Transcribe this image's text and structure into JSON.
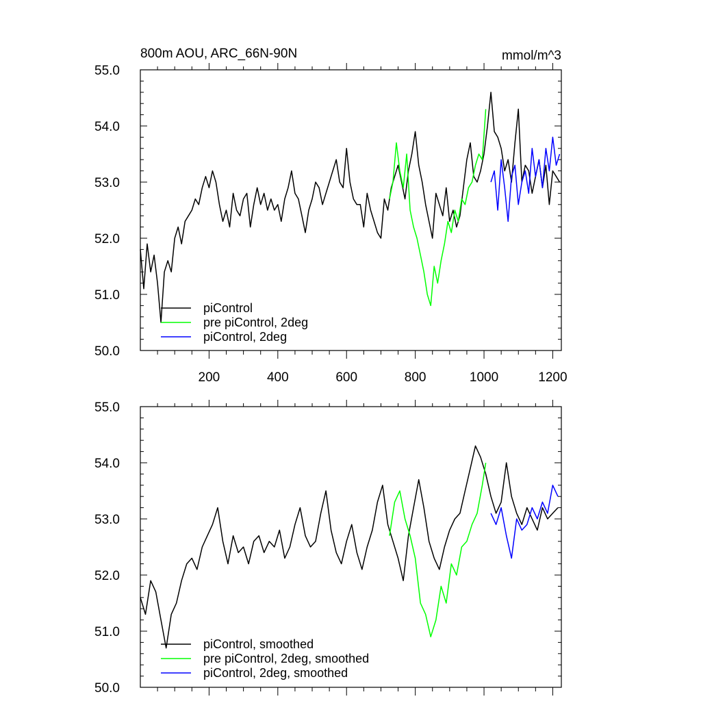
{
  "chart_data": [
    {
      "type": "line",
      "id": "top",
      "title_left": "800m AOU, ARC_66N-90N",
      "title_right": "mmol/m^3",
      "xlim": [
        0,
        1225
      ],
      "ylim": [
        50.0,
        55.0
      ],
      "x_ticks": [
        200,
        400,
        600,
        800,
        1000,
        1200
      ],
      "x_tick_labels": [
        "200",
        "400",
        "600",
        "800",
        "1000",
        "1200"
      ],
      "y_ticks": [
        50.0,
        51.0,
        52.0,
        53.0,
        54.0,
        55.0
      ],
      "y_tick_labels": [
        "50.0",
        "51.0",
        "52.0",
        "53.0",
        "54.0",
        "55.0"
      ],
      "legend": [
        "piControl",
        "pre piControl, 2deg",
        "piControl, 2deg"
      ],
      "series": [
        {
          "name": "piControl",
          "color": "#000000",
          "x": [
            0,
            10,
            20,
            30,
            40,
            50,
            60,
            70,
            80,
            90,
            100,
            110,
            120,
            130,
            140,
            150,
            160,
            170,
            180,
            190,
            200,
            210,
            220,
            230,
            240,
            250,
            260,
            270,
            280,
            290,
            300,
            310,
            320,
            330,
            340,
            350,
            360,
            370,
            380,
            390,
            400,
            410,
            420,
            430,
            440,
            450,
            460,
            470,
            480,
            490,
            500,
            510,
            520,
            530,
            540,
            550,
            560,
            570,
            580,
            590,
            600,
            610,
            620,
            630,
            640,
            650,
            660,
            670,
            680,
            690,
            700,
            710,
            720,
            730,
            740,
            750,
            760,
            770,
            780,
            790,
            800,
            810,
            820,
            830,
            840,
            850,
            860,
            870,
            880,
            890,
            900,
            910,
            920,
            930,
            940,
            950,
            960,
            970,
            980,
            990,
            1000,
            1010,
            1020,
            1030,
            1040,
            1050,
            1060,
            1070,
            1080,
            1090,
            1100,
            1110,
            1120,
            1130,
            1140,
            1150,
            1160,
            1170,
            1180,
            1190,
            1200,
            1210,
            1220
          ],
          "values": [
            51.8,
            51.1,
            51.9,
            51.4,
            51.7,
            51.2,
            50.5,
            51.4,
            51.6,
            51.4,
            52.0,
            52.2,
            51.9,
            52.3,
            52.4,
            52.5,
            52.7,
            52.6,
            52.9,
            53.1,
            52.9,
            53.2,
            53.0,
            52.6,
            52.3,
            52.5,
            52.2,
            52.8,
            52.5,
            52.4,
            52.7,
            52.8,
            52.2,
            52.6,
            52.9,
            52.6,
            52.8,
            52.5,
            52.7,
            52.5,
            52.6,
            52.3,
            52.7,
            52.9,
            53.2,
            52.8,
            52.7,
            52.4,
            52.1,
            52.5,
            52.7,
            53.0,
            52.9,
            52.6,
            52.8,
            53.0,
            53.2,
            53.4,
            53.0,
            52.9,
            53.6,
            53.0,
            52.7,
            52.6,
            52.6,
            52.2,
            52.8,
            52.5,
            52.3,
            52.1,
            52.0,
            52.7,
            52.5,
            52.9,
            53.1,
            53.3,
            53.0,
            52.7,
            53.2,
            53.5,
            53.9,
            53.3,
            53.0,
            52.6,
            52.3,
            52.0,
            52.8,
            52.6,
            52.4,
            52.9,
            52.3,
            52.5,
            52.2,
            52.4,
            52.9,
            53.4,
            53.7,
            53.1,
            53.0,
            53.2,
            53.5,
            54.0,
            54.6,
            53.9,
            53.8,
            53.6,
            53.2,
            53.4,
            53.0,
            53.7,
            54.3,
            53.0,
            53.3,
            53.2,
            52.8,
            53.1,
            53.4,
            52.9,
            53.3,
            52.6,
            53.2,
            53.1,
            53.0
          ]
        },
        {
          "name": "pre piControl, 2deg",
          "color": "#00ff00",
          "x": [
            725,
            735,
            745,
            755,
            765,
            775,
            785,
            795,
            805,
            815,
            825,
            835,
            845,
            855,
            865,
            875,
            885,
            895,
            905,
            915,
            925,
            935,
            945,
            955,
            965,
            975,
            985,
            995,
            1005
          ],
          "values": [
            52.7,
            53.0,
            53.7,
            53.2,
            52.9,
            53.5,
            52.5,
            52.2,
            52.0,
            51.7,
            51.4,
            51.0,
            50.8,
            51.5,
            51.2,
            51.6,
            51.9,
            52.3,
            52.1,
            52.5,
            52.3,
            52.7,
            52.6,
            52.9,
            53.0,
            53.3,
            53.5,
            53.4,
            54.3
          ]
        },
        {
          "name": "piControl, 2deg",
          "color": "#0000ff",
          "x": [
            1020,
            1030,
            1040,
            1050,
            1060,
            1070,
            1080,
            1090,
            1100,
            1110,
            1120,
            1130,
            1140,
            1150,
            1160,
            1170,
            1180,
            1190,
            1200,
            1210,
            1220
          ],
          "values": [
            53.0,
            53.2,
            52.5,
            53.4,
            52.9,
            52.3,
            53.1,
            53.3,
            52.6,
            53.0,
            53.2,
            52.8,
            53.6,
            53.1,
            53.4,
            52.9,
            53.6,
            53.2,
            53.8,
            53.3,
            53.5
          ]
        }
      ]
    },
    {
      "type": "line",
      "id": "bottom",
      "xlim": [
        0,
        1225
      ],
      "ylim": [
        50.0,
        55.0
      ],
      "x_ticks": [
        200,
        400,
        600,
        800,
        1000,
        1200
      ],
      "y_ticks": [
        50.0,
        51.0,
        52.0,
        53.0,
        54.0,
        55.0
      ],
      "y_tick_labels": [
        "50.0",
        "51.0",
        "52.0",
        "53.0",
        "54.0",
        "55.0"
      ],
      "legend": [
        "piControl, smoothed",
        "pre piControl, 2deg, smoothed",
        "piControl, 2deg, smoothed"
      ],
      "series": [
        {
          "name": "piControl, smoothed",
          "color": "#000000",
          "x": [
            0,
            15,
            30,
            45,
            60,
            75,
            90,
            105,
            120,
            135,
            150,
            165,
            180,
            195,
            210,
            225,
            240,
            255,
            270,
            285,
            300,
            315,
            330,
            345,
            360,
            375,
            390,
            405,
            420,
            435,
            450,
            465,
            480,
            495,
            510,
            525,
            540,
            555,
            570,
            585,
            600,
            615,
            630,
            645,
            660,
            675,
            690,
            705,
            720,
            735,
            750,
            765,
            780,
            795,
            810,
            825,
            840,
            855,
            870,
            885,
            900,
            915,
            930,
            945,
            960,
            975,
            990,
            1005,
            1020,
            1035,
            1050,
            1065,
            1080,
            1095,
            1110,
            1125,
            1140,
            1155,
            1170,
            1185,
            1200,
            1215
          ],
          "values": [
            51.6,
            51.3,
            51.9,
            51.7,
            51.2,
            50.7,
            51.3,
            51.5,
            51.9,
            52.2,
            52.3,
            52.1,
            52.5,
            52.7,
            52.9,
            53.2,
            52.6,
            52.2,
            52.7,
            52.4,
            52.5,
            52.2,
            52.6,
            52.7,
            52.4,
            52.6,
            52.5,
            52.8,
            52.3,
            52.5,
            52.9,
            53.2,
            52.7,
            52.5,
            52.6,
            53.1,
            53.5,
            52.8,
            52.4,
            52.2,
            52.6,
            52.9,
            52.4,
            52.1,
            52.5,
            52.8,
            53.3,
            53.6,
            52.9,
            52.6,
            52.3,
            51.9,
            52.7,
            53.2,
            53.7,
            53.2,
            52.6,
            52.3,
            52.1,
            52.5,
            52.8,
            53.0,
            53.1,
            53.5,
            53.9,
            54.3,
            54.1,
            53.8,
            53.4,
            53.1,
            53.3,
            54.0,
            53.4,
            53.1,
            52.9,
            53.2,
            53.0,
            52.8,
            53.2,
            53.0,
            53.1,
            53.2
          ]
        },
        {
          "name": "pre piControl, 2deg, smoothed",
          "color": "#00ff00",
          "x": [
            725,
            740,
            755,
            770,
            785,
            800,
            815,
            830,
            845,
            860,
            875,
            890,
            905,
            920,
            935,
            950,
            965,
            980,
            995,
            1005
          ],
          "values": [
            52.7,
            53.3,
            53.5,
            53.0,
            52.7,
            52.3,
            51.5,
            51.3,
            50.9,
            51.2,
            51.8,
            51.5,
            52.2,
            52.0,
            52.5,
            52.6,
            52.9,
            53.1,
            53.6,
            54.0
          ]
        },
        {
          "name": "piControl, 2deg, smoothed",
          "color": "#0000ff",
          "x": [
            1020,
            1035,
            1050,
            1065,
            1080,
            1095,
            1110,
            1125,
            1140,
            1155,
            1170,
            1185,
            1200,
            1215
          ],
          "values": [
            53.1,
            52.9,
            53.2,
            52.7,
            52.3,
            53.0,
            52.8,
            52.9,
            53.2,
            53.0,
            53.3,
            53.1,
            53.6,
            53.4
          ]
        }
      ]
    }
  ]
}
